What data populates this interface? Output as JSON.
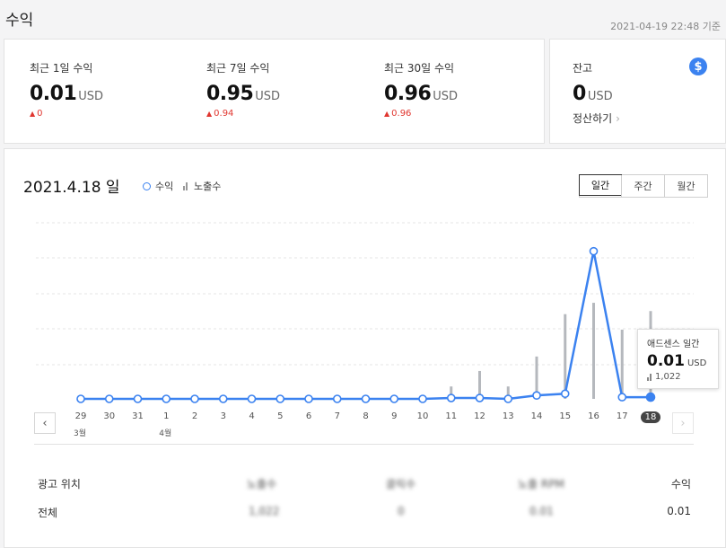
{
  "page": {
    "title": "수익",
    "timestamp": "2021-04-19 22:48 기준"
  },
  "summary": {
    "items": [
      {
        "label": "최근 1일 수익",
        "value": "0.01",
        "unit": "USD",
        "delta": "0"
      },
      {
        "label": "최근 7일 수익",
        "value": "0.95",
        "unit": "USD",
        "delta": "0.94"
      },
      {
        "label": "최근 30일 수익",
        "value": "0.96",
        "unit": "USD",
        "delta": "0.96"
      }
    ],
    "delta_color": "#e0362f"
  },
  "balance": {
    "label": "잔고",
    "value": "0",
    "unit": "USD",
    "settle_label": "정산하기",
    "icon": "dollar-icon",
    "icon_color": "#3b82f0"
  },
  "chart_header": {
    "date": "2021.4.18 일",
    "legend_revenue": "수익",
    "legend_impressions": "노출수",
    "tabs": [
      "일간",
      "주간",
      "월간"
    ],
    "active_tab": "일간"
  },
  "nav": {
    "prev_icon": "chevron-left-icon",
    "next_icon": "chevron-right-icon"
  },
  "chart_data": {
    "type": "line",
    "categories": [
      "29",
      "30",
      "31",
      "1",
      "2",
      "3",
      "4",
      "5",
      "6",
      "7",
      "8",
      "9",
      "10",
      "11",
      "12",
      "13",
      "14",
      "15",
      "16",
      "17",
      "18"
    ],
    "month_labels": [
      {
        "index": 0,
        "label": "3월"
      },
      {
        "index": 3,
        "label": "4월"
      }
    ],
    "series": [
      {
        "name": "수익",
        "type": "line",
        "color": "#3b82f0",
        "values": [
          0,
          0,
          0,
          0,
          0,
          0,
          0,
          0,
          0,
          0,
          0,
          0,
          0,
          0.005,
          0.005,
          0.0,
          0.02,
          0.03,
          0.86,
          0.01,
          0.01
        ]
      },
      {
        "name": "노출수",
        "type": "bar",
        "color": "#b5b8bd",
        "values": [
          0,
          0,
          0,
          0,
          0,
          0,
          0,
          0,
          0,
          0,
          0,
          0,
          0.02,
          0.12,
          0.27,
          0.12,
          0.41,
          0.82,
          0.93,
          0.67,
          0.85
        ]
      }
    ],
    "selected_index": 20,
    "grid": true,
    "ylim": [
      0,
      0.9
    ]
  },
  "tooltip": {
    "title": "애드센스 일간",
    "value": "0.01",
    "unit": "USD",
    "impressions": "1,022"
  },
  "table": {
    "headers": [
      "광고 위치",
      "노출수",
      "클릭수",
      "노출 RPM",
      "수익"
    ],
    "rows": [
      [
        "전체",
        "1,022",
        "0",
        "0.01",
        "0.01"
      ]
    ]
  }
}
